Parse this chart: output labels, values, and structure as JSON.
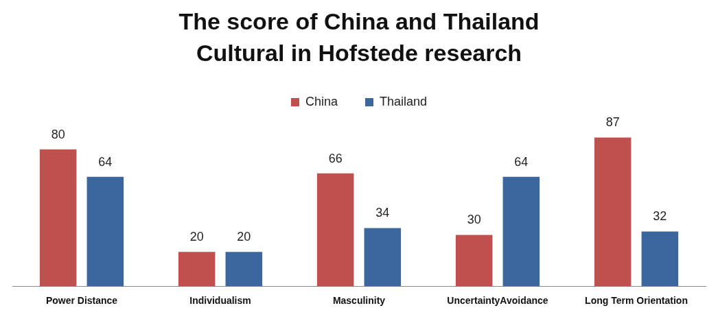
{
  "chart_data": {
    "type": "bar",
    "title": "The score of China and Thailand Cultural in Hofstede research",
    "categories": [
      "Power Distance",
      "Individualism",
      "Masculinity",
      "UncertaintyAvoidance",
      "Long Term Orientation"
    ],
    "series": [
      {
        "name": "China",
        "color": "#c0504d",
        "values": [
          80,
          20,
          66,
          30,
          87
        ]
      },
      {
        "name": "Thailand",
        "color": "#3c679e",
        "values": [
          64,
          20,
          34,
          64,
          32
        ]
      }
    ],
    "data_labels": true,
    "legend": "top"
  }
}
